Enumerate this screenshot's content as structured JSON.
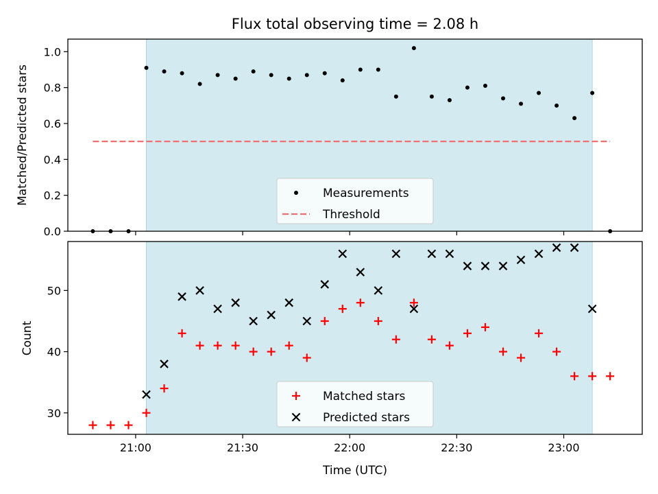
{
  "chart_data": [
    {
      "type": "scatter",
      "title": "Flux total observing time = 2.08 h",
      "xlabel": "",
      "ylabel": "Matched/Predicted stars",
      "ylim": [
        0,
        1.07
      ],
      "yticks": [
        "0.0",
        "0.2",
        "0.4",
        "0.6",
        "0.8",
        "1.0"
      ],
      "ytick_values": [
        0,
        0.2,
        0.4,
        0.6,
        0.8,
        1.0
      ],
      "observing_window": [
        "21:03",
        "23:08"
      ],
      "threshold": {
        "y": 0.5,
        "x_start": "20:48",
        "x_end": "23:13",
        "color": "#f07070"
      },
      "legend": {
        "placement": "lower-center",
        "entries": [
          "Measurements",
          "Threshold"
        ]
      },
      "series": [
        {
          "name": "Measurements",
          "color": "#000000",
          "x": [
            "20:48",
            "20:53",
            "20:58",
            "21:03",
            "21:08",
            "21:13",
            "21:18",
            "21:23",
            "21:28",
            "21:33",
            "21:38",
            "21:43",
            "21:48",
            "21:53",
            "21:58",
            "22:03",
            "22:08",
            "22:13",
            "22:18",
            "22:23",
            "22:28",
            "22:33",
            "22:38",
            "22:43",
            "22:48",
            "22:53",
            "22:58",
            "23:03",
            "23:08",
            "23:13"
          ],
          "y": [
            0,
            0,
            0,
            0.91,
            0.89,
            0.88,
            0.82,
            0.87,
            0.85,
            0.89,
            0.87,
            0.85,
            0.87,
            0.88,
            0.84,
            0.9,
            0.9,
            0.75,
            1.02,
            0.75,
            0.73,
            0.8,
            0.81,
            0.74,
            0.71,
            0.77,
            0.7,
            0.63,
            0.77,
            0
          ]
        }
      ]
    },
    {
      "type": "scatter",
      "xlabel": "Time (UTC)",
      "ylabel": "Count",
      "ylim": [
        26.5,
        58
      ],
      "yticks": [
        "30",
        "40",
        "50"
      ],
      "ytick_values": [
        30,
        40,
        50
      ],
      "xticks": [
        "21:00",
        "21:30",
        "22:00",
        "22:30",
        "23:00"
      ],
      "xlim": [
        "20:41",
        "23:22"
      ],
      "observing_window": [
        "21:03",
        "23:08"
      ],
      "legend": {
        "placement": "lower-center",
        "entries": [
          "Matched stars",
          "Predicted stars"
        ]
      },
      "series": [
        {
          "name": "Matched stars",
          "marker": "plus",
          "color": "#ff0000",
          "x": [
            "20:48",
            "20:53",
            "20:58",
            "21:03",
            "21:08",
            "21:13",
            "21:18",
            "21:23",
            "21:28",
            "21:33",
            "21:38",
            "21:43",
            "21:48",
            "21:53",
            "21:58",
            "22:03",
            "22:08",
            "22:13",
            "22:18",
            "22:23",
            "22:28",
            "22:33",
            "22:38",
            "22:43",
            "22:48",
            "22:53",
            "22:58",
            "23:03",
            "23:08",
            "23:13"
          ],
          "y": [
            28,
            28,
            28,
            30,
            34,
            43,
            41,
            41,
            41,
            40,
            40,
            41,
            39,
            45,
            47,
            48,
            45,
            42,
            48,
            42,
            41,
            43,
            44,
            40,
            39,
            43,
            40,
            36,
            36,
            36
          ]
        },
        {
          "name": "Predicted stars",
          "marker": "x",
          "color": "#000000",
          "x": [
            "21:03",
            "21:08",
            "21:13",
            "21:18",
            "21:23",
            "21:28",
            "21:33",
            "21:38",
            "21:43",
            "21:48",
            "21:53",
            "21:58",
            "22:03",
            "22:08",
            "22:13",
            "22:18",
            "22:23",
            "22:28",
            "22:33",
            "22:38",
            "22:43",
            "22:48",
            "22:53",
            "22:58",
            "23:03",
            "23:08"
          ],
          "y": [
            33,
            38,
            49,
            50,
            47,
            48,
            45,
            46,
            48,
            45,
            51,
            56,
            53,
            50,
            56,
            47,
            56,
            56,
            54,
            54,
            54,
            55,
            56,
            57,
            57,
            47
          ]
        }
      ]
    }
  ]
}
